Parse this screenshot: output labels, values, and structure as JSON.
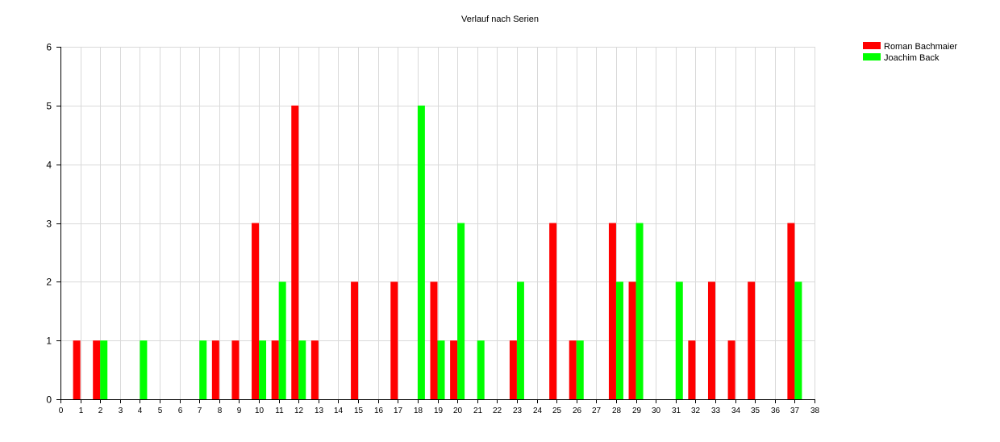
{
  "chart_data": {
    "type": "bar",
    "title": "Verlauf nach Serien",
    "xlabel": "",
    "ylabel": "",
    "xlim": [
      0,
      38
    ],
    "ylim": [
      0,
      6
    ],
    "x_ticks": [
      0,
      1,
      2,
      3,
      4,
      5,
      6,
      7,
      8,
      9,
      10,
      11,
      12,
      13,
      14,
      15,
      16,
      17,
      18,
      19,
      20,
      21,
      22,
      23,
      24,
      25,
      26,
      27,
      28,
      29,
      30,
      31,
      32,
      33,
      34,
      35,
      36,
      37,
      38
    ],
    "y_ticks": [
      0,
      1,
      2,
      3,
      4,
      5,
      6
    ],
    "grid": true,
    "legend_position": "top-right",
    "series": [
      {
        "name": "Roman Bachmaier",
        "color": "#ff0000",
        "points": [
          [
            1,
            1
          ],
          [
            2,
            1
          ],
          [
            8,
            1
          ],
          [
            9,
            1
          ],
          [
            10,
            3
          ],
          [
            11,
            1
          ],
          [
            12,
            5
          ],
          [
            13,
            1
          ],
          [
            15,
            2
          ],
          [
            17,
            2
          ],
          [
            19,
            2
          ],
          [
            20,
            1
          ],
          [
            23,
            1
          ],
          [
            25,
            3
          ],
          [
            26,
            1
          ],
          [
            28,
            3
          ],
          [
            29,
            2
          ],
          [
            32,
            1
          ],
          [
            33,
            2
          ],
          [
            34,
            1
          ],
          [
            35,
            2
          ],
          [
            37,
            3
          ]
        ]
      },
      {
        "name": "Joachim Back",
        "color": "#00ff00",
        "points": [
          [
            2,
            1
          ],
          [
            4,
            1
          ],
          [
            7,
            1
          ],
          [
            10,
            1
          ],
          [
            11,
            2
          ],
          [
            12,
            1
          ],
          [
            18,
            5
          ],
          [
            19,
            1
          ],
          [
            20,
            3
          ],
          [
            21,
            1
          ],
          [
            23,
            2
          ],
          [
            26,
            1
          ],
          [
            28,
            2
          ],
          [
            29,
            3
          ],
          [
            31,
            2
          ],
          [
            37,
            2
          ]
        ]
      }
    ]
  }
}
